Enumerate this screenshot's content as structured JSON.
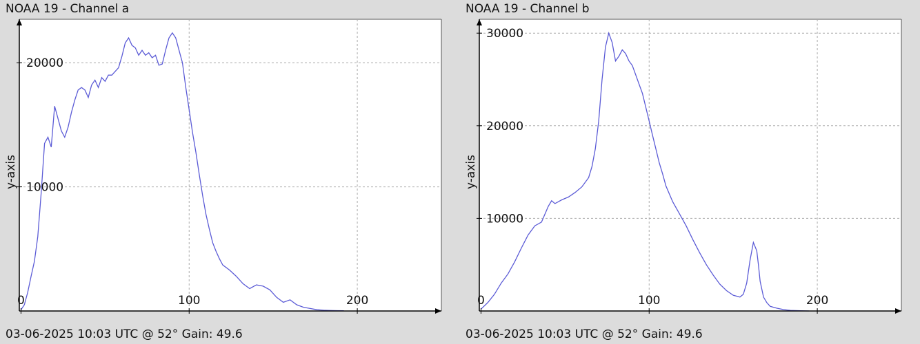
{
  "chart_data": [
    {
      "type": "line",
      "title": "NOAA 19 - Channel a",
      "footer": "03-06-2025 10:03 UTC @ 52° Gain: 49.6",
      "xlabel": "",
      "ylabel": "y-axis",
      "xlim": [
        -1,
        250
      ],
      "ylim": [
        0,
        23500
      ],
      "xticks": [
        0,
        100,
        200
      ],
      "yticks": [
        10000,
        20000
      ],
      "grid": true,
      "color": "#5b5bd6",
      "x": [
        0,
        2,
        4,
        6,
        8,
        10,
        12,
        14,
        16,
        18,
        20,
        22,
        24,
        26,
        28,
        30,
        32,
        34,
        36,
        38,
        40,
        42,
        44,
        46,
        48,
        50,
        52,
        54,
        56,
        58,
        60,
        62,
        64,
        66,
        68,
        70,
        72,
        74,
        76,
        78,
        80,
        82,
        84,
        86,
        88,
        90,
        92,
        94,
        96,
        98,
        100,
        102,
        104,
        106,
        108,
        110,
        112,
        114,
        116,
        118,
        120,
        124,
        128,
        132,
        136,
        140,
        144,
        148,
        152,
        156,
        160,
        164,
        168,
        172,
        176,
        180,
        184,
        188,
        192
      ],
      "series": [
        {
          "values": [
            100,
            500,
            1500,
            2800,
            4000,
            6000,
            9500,
            13500,
            14000,
            13200,
            16500,
            15500,
            14500,
            14000,
            14800,
            16000,
            17000,
            17800,
            18000,
            17800,
            17200,
            18200,
            18600,
            18000,
            18800,
            18500,
            19000,
            19000,
            19300,
            19600,
            20500,
            21600,
            22000,
            21400,
            21200,
            20600,
            21000,
            20600,
            20800,
            20400,
            20600,
            19800,
            19900,
            21000,
            22000,
            22400,
            22000,
            21000,
            20000,
            18000,
            16200,
            14400,
            12800,
            11000,
            9300,
            7800,
            6600,
            5500,
            4800,
            4200,
            3700,
            3300,
            2800,
            2200,
            1800,
            2100,
            2000,
            1700,
            1100,
            700,
            900,
            500,
            300,
            200,
            100,
            60,
            40,
            30,
            20
          ]
        }
      ]
    },
    {
      "type": "line",
      "title": "NOAA 19 - Channel b",
      "footer": "03-06-2025 10:03 UTC @ 52° Gain: 49.6",
      "xlabel": "",
      "ylabel": "y-axis",
      "xlim": [
        -1,
        250
      ],
      "ylim": [
        0,
        31500
      ],
      "xticks": [
        0,
        100,
        200
      ],
      "yticks": [
        10000,
        20000,
        30000
      ],
      "grid": true,
      "color": "#5b5bd6",
      "x": [
        0,
        4,
        8,
        12,
        16,
        20,
        24,
        28,
        32,
        36,
        40,
        42,
        44,
        46,
        48,
        52,
        56,
        60,
        64,
        66,
        68,
        70,
        72,
        74,
        76,
        78,
        80,
        82,
        84,
        86,
        88,
        90,
        92,
        94,
        96,
        98,
        100,
        102,
        104,
        106,
        108,
        110,
        114,
        118,
        122,
        126,
        130,
        134,
        138,
        142,
        146,
        150,
        154,
        156,
        158,
        160,
        162,
        164,
        165,
        166,
        168,
        170,
        172,
        176,
        180,
        184,
        190,
        195
      ],
      "series": [
        {
          "values": [
            200,
            900,
            1800,
            3000,
            4000,
            5300,
            6800,
            8200,
            9200,
            9600,
            11300,
            11900,
            11600,
            11800,
            12000,
            12300,
            12800,
            13400,
            14400,
            15600,
            17500,
            20500,
            25000,
            28500,
            30000,
            29000,
            27000,
            27500,
            28200,
            27800,
            27000,
            26500,
            25500,
            24500,
            23500,
            22000,
            20500,
            19000,
            17500,
            16000,
            14800,
            13500,
            11800,
            10500,
            9200,
            7700,
            6300,
            5000,
            3900,
            2900,
            2200,
            1700,
            1500,
            1800,
            3000,
            5500,
            7400,
            6500,
            5000,
            3200,
            1500,
            900,
            500,
            300,
            150,
            60,
            20,
            0
          ]
        }
      ]
    }
  ]
}
